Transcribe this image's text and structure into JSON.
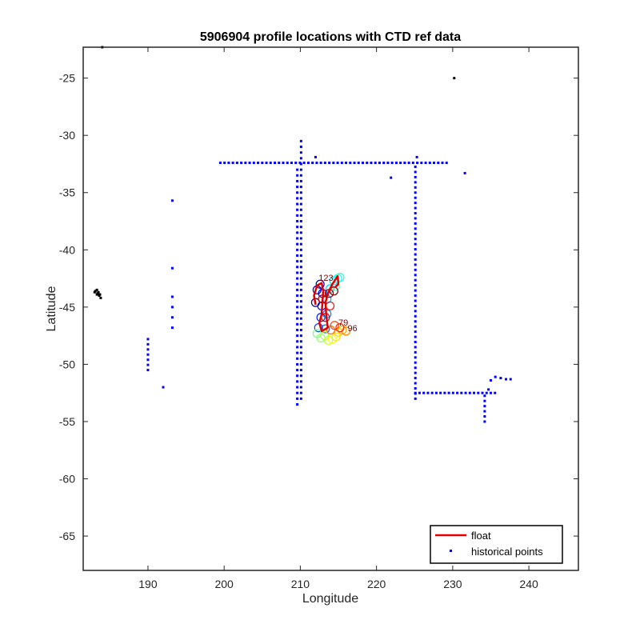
{
  "chart_data": {
    "type": "scatter",
    "title": "5906904 profile locations with CTD ref data",
    "xlabel": "Longitude",
    "ylabel": "Latitude",
    "xlim": [
      181.5,
      246.5
    ],
    "ylim": [
      -68,
      -22.3
    ],
    "xticks": [
      190,
      200,
      210,
      220,
      230,
      240
    ],
    "yticks": [
      -25,
      -30,
      -35,
      -40,
      -45,
      -50,
      -55,
      -60,
      -65
    ],
    "grid": false,
    "legend": {
      "placement": "bottom-right",
      "entries": [
        "float",
        "historical points"
      ]
    },
    "colors": {
      "float": "#e00000",
      "historical": "#0000ff",
      "coast": "#000000"
    },
    "series": [
      {
        "name": "historical points",
        "marker": "dot",
        "color": "#0000ff",
        "segments": [
          {
            "kind": "hline",
            "y": -32.4,
            "x0": 199.5,
            "x1": 229.5,
            "step": 0.55
          },
          {
            "kind": "vline",
            "x": 209.6,
            "y0": -53.5,
            "y1": -32.6,
            "step": 0.5
          },
          {
            "kind": "vline",
            "x": 210.1,
            "y0": -53.0,
            "y1": -30.3,
            "step": 0.5
          },
          {
            "kind": "vline",
            "x": 225.1,
            "y0": -53.0,
            "y1": -32.4,
            "step": 0.45
          },
          {
            "kind": "hline",
            "y": -52.5,
            "x0": 225.1,
            "x1": 236.0,
            "step": 0.55
          },
          {
            "kind": "vline",
            "x": 234.2,
            "y0": -55.0,
            "y1": -52.5,
            "step": 0.45
          },
          {
            "kind": "vline",
            "x": 190.0,
            "y0": -50.5,
            "y1": -47.5,
            "step": 0.45
          },
          {
            "kind": "vline",
            "x": 193.2,
            "y0": -46.8,
            "y1": -44.0,
            "step": 0.9
          }
        ],
        "points": [
          [
            193.2,
            -35.7
          ],
          [
            193.2,
            -41.6
          ],
          [
            192.0,
            -52.0
          ],
          [
            212.0,
            -31.9
          ],
          [
            221.9,
            -33.7
          ],
          [
            225.3,
            -31.9
          ],
          [
            231.6,
            -33.3
          ],
          [
            234.7,
            -52.2
          ],
          [
            235.0,
            -51.4
          ],
          [
            235.6,
            -51.1
          ],
          [
            236.3,
            -51.2
          ],
          [
            237.0,
            -51.3
          ],
          [
            237.6,
            -51.3
          ]
        ]
      },
      {
        "name": "coast",
        "marker": "dot",
        "color": "#000000",
        "points": [
          [
            183.1,
            -43.6
          ],
          [
            183.3,
            -43.5
          ],
          [
            183.5,
            -43.7
          ],
          [
            183.3,
            -43.9
          ],
          [
            183.6,
            -44.0
          ],
          [
            183.8,
            -44.2
          ],
          [
            183.4,
            -43.8
          ],
          [
            183.0,
            -43.7
          ],
          [
            183.7,
            -43.9
          ],
          [
            184.0,
            -22.3
          ],
          [
            230.2,
            -25.0
          ]
        ]
      },
      {
        "name": "float",
        "color": "#e00000",
        "track": [
          [
            212.0,
            -44.8
          ],
          [
            211.8,
            -44.0
          ],
          [
            212.2,
            -43.1
          ],
          [
            212.8,
            -42.9
          ],
          [
            213.0,
            -43.6
          ],
          [
            212.9,
            -44.6
          ],
          [
            212.8,
            -45.6
          ],
          [
            212.5,
            -46.4
          ],
          [
            212.8,
            -47.1
          ],
          [
            213.6,
            -46.8
          ],
          [
            213.4,
            -45.7
          ],
          [
            213.3,
            -44.6
          ],
          [
            213.7,
            -43.7
          ],
          [
            214.2,
            -43.0
          ],
          [
            214.9,
            -42.3
          ],
          [
            215.0,
            -43.0
          ],
          [
            214.5,
            -43.3
          ]
        ],
        "profiles": [
          [
            212.0,
            -44.6
          ],
          [
            212.2,
            -43.5
          ],
          [
            212.6,
            -43.0
          ],
          [
            212.9,
            -43.8
          ],
          [
            212.8,
            -44.9
          ],
          [
            212.7,
            -45.9
          ],
          [
            212.4,
            -46.8
          ],
          [
            213.3,
            -46.9
          ],
          [
            213.5,
            -45.6
          ],
          [
            213.5,
            -44.3
          ],
          [
            213.9,
            -43.4
          ],
          [
            214.4,
            -42.7
          ],
          [
            214.9,
            -42.5
          ],
          [
            215.2,
            -42.4
          ],
          [
            214.6,
            -43.2
          ],
          [
            212.2,
            -47.3
          ],
          [
            212.7,
            -47.7
          ],
          [
            213.2,
            -47.5
          ],
          [
            213.7,
            -47.9
          ],
          [
            214.2,
            -47.8
          ],
          [
            214.7,
            -47.6
          ],
          [
            215.0,
            -47.2
          ],
          [
            215.5,
            -47.0
          ],
          [
            216.0,
            -47.1
          ],
          [
            214.0,
            -47.0
          ],
          [
            214.5,
            -46.6
          ],
          [
            215.2,
            -46.8
          ],
          [
            213.9,
            -44.9
          ],
          [
            213.3,
            -45.9
          ],
          [
            212.9,
            -44.3
          ],
          [
            213.8,
            -43.8
          ],
          [
            214.4,
            -43.6
          ]
        ],
        "labels": [
          {
            "text": "123",
            "lon": 212.4,
            "lat": -42.7
          },
          {
            "text": "96",
            "lon": 216.2,
            "lat": -47.1
          },
          {
            "text": "79",
            "lon": 215.0,
            "lat": -46.6
          }
        ]
      }
    ]
  }
}
